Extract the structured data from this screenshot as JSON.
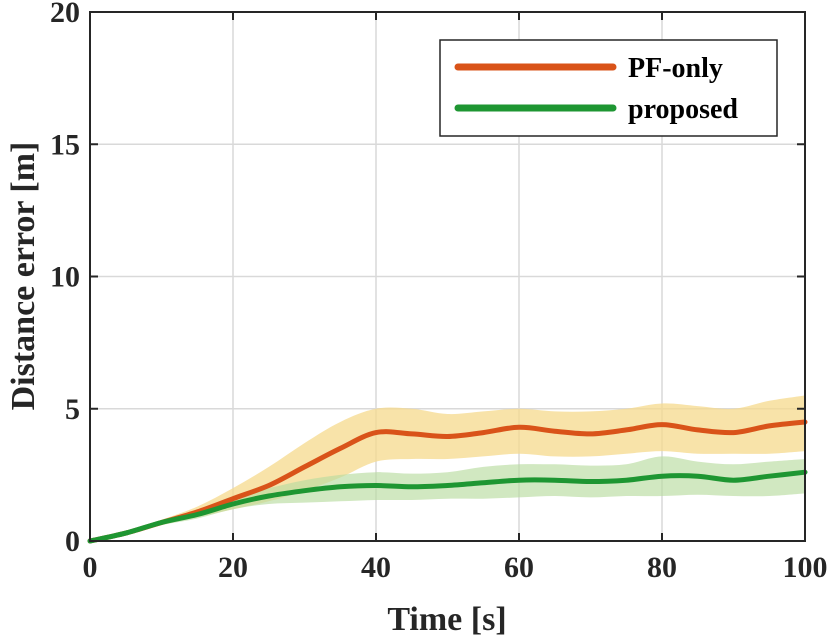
{
  "chart_data": {
    "type": "line",
    "title": "",
    "xlabel": "Time [s]",
    "ylabel": "Distance error [m]",
    "xlim": [
      0,
      100
    ],
    "ylim": [
      0,
      20
    ],
    "xticks": [
      0,
      20,
      40,
      60,
      80,
      100
    ],
    "yticks": [
      0,
      5,
      10,
      15,
      20
    ],
    "grid": true,
    "legend_position": "top-right",
    "x": [
      0,
      5,
      10,
      15,
      20,
      25,
      30,
      35,
      40,
      45,
      50,
      55,
      60,
      65,
      70,
      75,
      80,
      85,
      90,
      95,
      100
    ],
    "series": [
      {
        "name": "PF-only",
        "color": "#d95319",
        "band_color": "#f5d98c",
        "values": [
          0.0,
          0.3,
          0.7,
          1.1,
          1.6,
          2.1,
          2.8,
          3.5,
          4.1,
          4.05,
          3.95,
          4.1,
          4.3,
          4.15,
          4.05,
          4.2,
          4.4,
          4.2,
          4.1,
          4.35,
          4.5
        ],
        "lower": [
          0.0,
          0.28,
          0.6,
          0.9,
          1.2,
          1.5,
          1.9,
          2.4,
          3.0,
          3.1,
          3.1,
          3.2,
          3.3,
          3.2,
          3.2,
          3.3,
          3.4,
          3.3,
          3.3,
          3.3,
          3.4
        ],
        "upper": [
          0.0,
          0.32,
          0.8,
          1.3,
          2.0,
          2.8,
          3.7,
          4.5,
          5.0,
          5.0,
          4.8,
          4.9,
          5.0,
          4.9,
          4.9,
          5.0,
          5.2,
          5.1,
          5.0,
          5.3,
          5.5
        ]
      },
      {
        "name": "proposed",
        "color": "#1e9632",
        "band_color": "#b9dca0",
        "values": [
          0.0,
          0.3,
          0.7,
          1.0,
          1.4,
          1.7,
          1.9,
          2.05,
          2.1,
          2.05,
          2.1,
          2.2,
          2.3,
          2.3,
          2.25,
          2.3,
          2.45,
          2.45,
          2.3,
          2.45,
          2.6
        ],
        "lower": [
          0.0,
          0.28,
          0.6,
          0.85,
          1.2,
          1.4,
          1.45,
          1.5,
          1.55,
          1.55,
          1.6,
          1.6,
          1.65,
          1.7,
          1.65,
          1.7,
          1.7,
          1.75,
          1.7,
          1.7,
          1.8
        ],
        "upper": [
          0.0,
          0.32,
          0.8,
          1.15,
          1.7,
          2.0,
          2.3,
          2.5,
          2.6,
          2.55,
          2.6,
          2.8,
          2.9,
          2.9,
          2.85,
          2.9,
          3.2,
          3.0,
          2.9,
          3.0,
          3.1
        ]
      }
    ]
  }
}
